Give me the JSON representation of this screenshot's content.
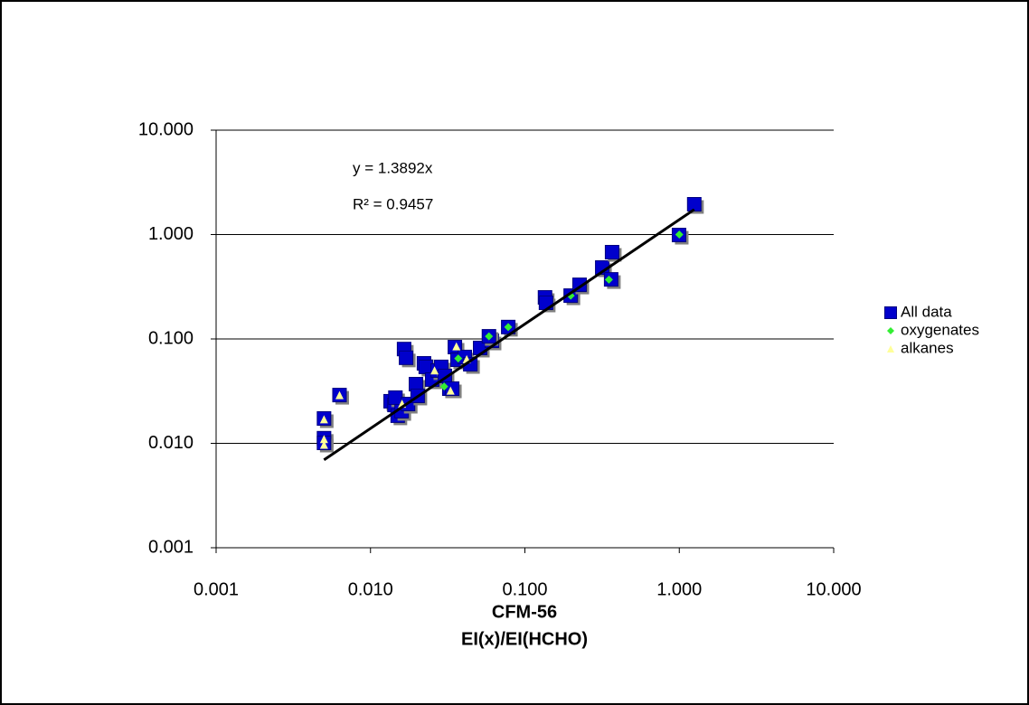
{
  "chart_data": {
    "type": "scatter",
    "xlabel": [
      "CFM-56",
      "EI(x)/EI(HCHO)"
    ],
    "annotations": [
      "y = 1.3892x",
      "R² = 0.9457"
    ],
    "xscale": "log",
    "yscale": "log",
    "grid": true,
    "legend": "right",
    "xlim": [
      0.001,
      10
    ],
    "ylim": [
      0.001,
      10
    ],
    "xticks": [
      0.001,
      {
        "value": 0.01,
        "label": "0.010"
      },
      {
        "value": 0.1,
        "label": "0.100"
      },
      {
        "value": 1,
        "label": "1.000"
      },
      {
        "value": 10,
        "label": "10.000"
      }
    ],
    "yticks": [
      0.001,
      {
        "value": 0.01,
        "label": "0.010"
      },
      {
        "value": 0.1,
        "label": "0.100"
      },
      {
        "value": 1,
        "label": "1.000"
      },
      {
        "value": 10,
        "label": "10.000"
      }
    ],
    "trendline": {
      "slope": 1.3892,
      "xlim": [
        0.005,
        1.25
      ],
      "color": "#000000"
    },
    "series": [
      {
        "name": "All data",
        "color": "#0000cc",
        "marker": "square",
        "x": [
          0.005,
          0.005,
          0.005,
          0.0063,
          0.0165,
          0.017,
          0.0135,
          0.0143,
          0.0145,
          0.015,
          0.0159,
          0.0175,
          0.0197,
          0.0202,
          0.0222,
          0.0228,
          0.0251,
          0.0272,
          0.0287,
          0.0303,
          0.0324,
          0.0338,
          0.0352,
          0.0366,
          0.0408,
          0.0443,
          0.0513,
          0.0611,
          0.0585,
          0.078,
          0.135,
          0.137,
          0.198,
          0.226,
          0.317,
          0.367,
          0.362,
          0.996,
          1.25
        ],
        "values": [
          0.0173,
          0.0112,
          0.0101,
          0.029,
          0.08,
          0.066,
          0.0253,
          0.0233,
          0.0274,
          0.0184,
          0.0203,
          0.0238,
          0.0369,
          0.0285,
          0.0584,
          0.054,
          0.0408,
          0.0498,
          0.054,
          0.0442,
          0.0334,
          0.0334,
          0.0836,
          0.0632,
          0.0672,
          0.0572,
          0.082,
          0.096,
          0.106,
          0.13,
          0.25,
          0.222,
          0.26,
          0.33,
          0.483,
          0.678,
          0.372,
          0.99,
          1.95
        ]
      },
      {
        "name": "oxygenates",
        "color": "#33ee33",
        "marker": "diamond",
        "x": [
          0.03,
          0.037,
          0.0585,
          0.078,
          0.198,
          0.35,
          1.0
        ],
        "values": [
          0.035,
          0.065,
          0.106,
          0.13,
          0.26,
          0.37,
          1.0
        ]
      },
      {
        "name": "alkanes",
        "color": "#ffff99",
        "marker": "triangle",
        "x": [
          0.005,
          0.005,
          0.005,
          0.0063,
          0.016,
          0.026,
          0.033,
          0.036,
          0.042
        ],
        "values": [
          0.017,
          0.011,
          0.0097,
          0.029,
          0.024,
          0.05,
          0.032,
          0.085,
          0.064
        ]
      }
    ]
  }
}
